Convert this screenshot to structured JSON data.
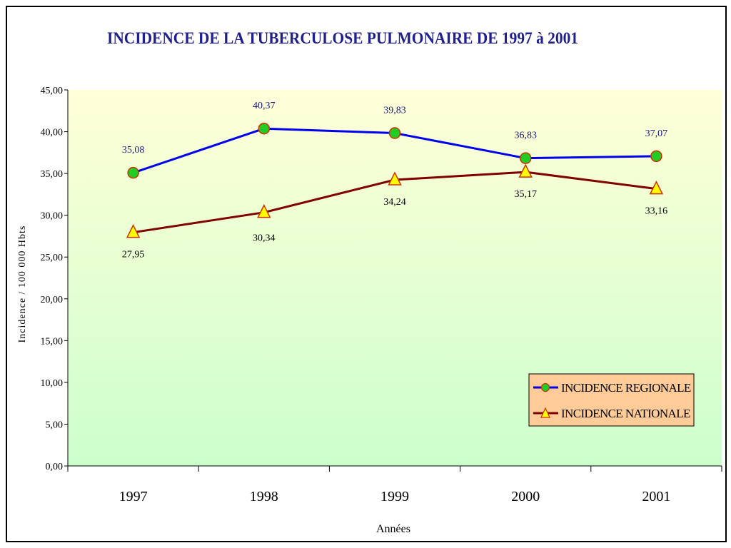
{
  "chart_data": {
    "type": "line",
    "title": "INCIDENCE DE LA TUBERCULOSE PULMONAIRE DE 1997 à 2001",
    "xlabel": "Années",
    "ylabel": "Incidence / 100 000 Hbts",
    "categories": [
      "1997",
      "1998",
      "1999",
      "2000",
      "2001"
    ],
    "ylim": [
      0,
      45
    ],
    "yticks": [
      "0,00",
      "5,00",
      "10,00",
      "15,00",
      "20,00",
      "25,00",
      "30,00",
      "35,00",
      "40,00",
      "45,00"
    ],
    "grid": false,
    "legend_position": "bottom-right",
    "series": [
      {
        "name": "INCIDENCE REGIONALE",
        "values": [
          35.08,
          40.37,
          39.83,
          36.83,
          37.07
        ],
        "labels": [
          "35,08",
          "40,37",
          "39,83",
          "36,83",
          "37,07"
        ],
        "color": "#0000ee",
        "marker": "circle",
        "marker_color": "#22cc22"
      },
      {
        "name": "INCIDENCE NATIONALE",
        "values": [
          27.95,
          30.34,
          34.24,
          35.17,
          33.16
        ],
        "labels": [
          "27,95",
          "30,34",
          "34,24",
          "35,17",
          "33,16"
        ],
        "color": "#800000",
        "marker": "triangle",
        "marker_color": "#ffff00"
      }
    ],
    "colors": {
      "plot_top": "#ffffd8",
      "plot_bottom": "#ccffcc",
      "legend_bg": "#ffcc99"
    }
  }
}
